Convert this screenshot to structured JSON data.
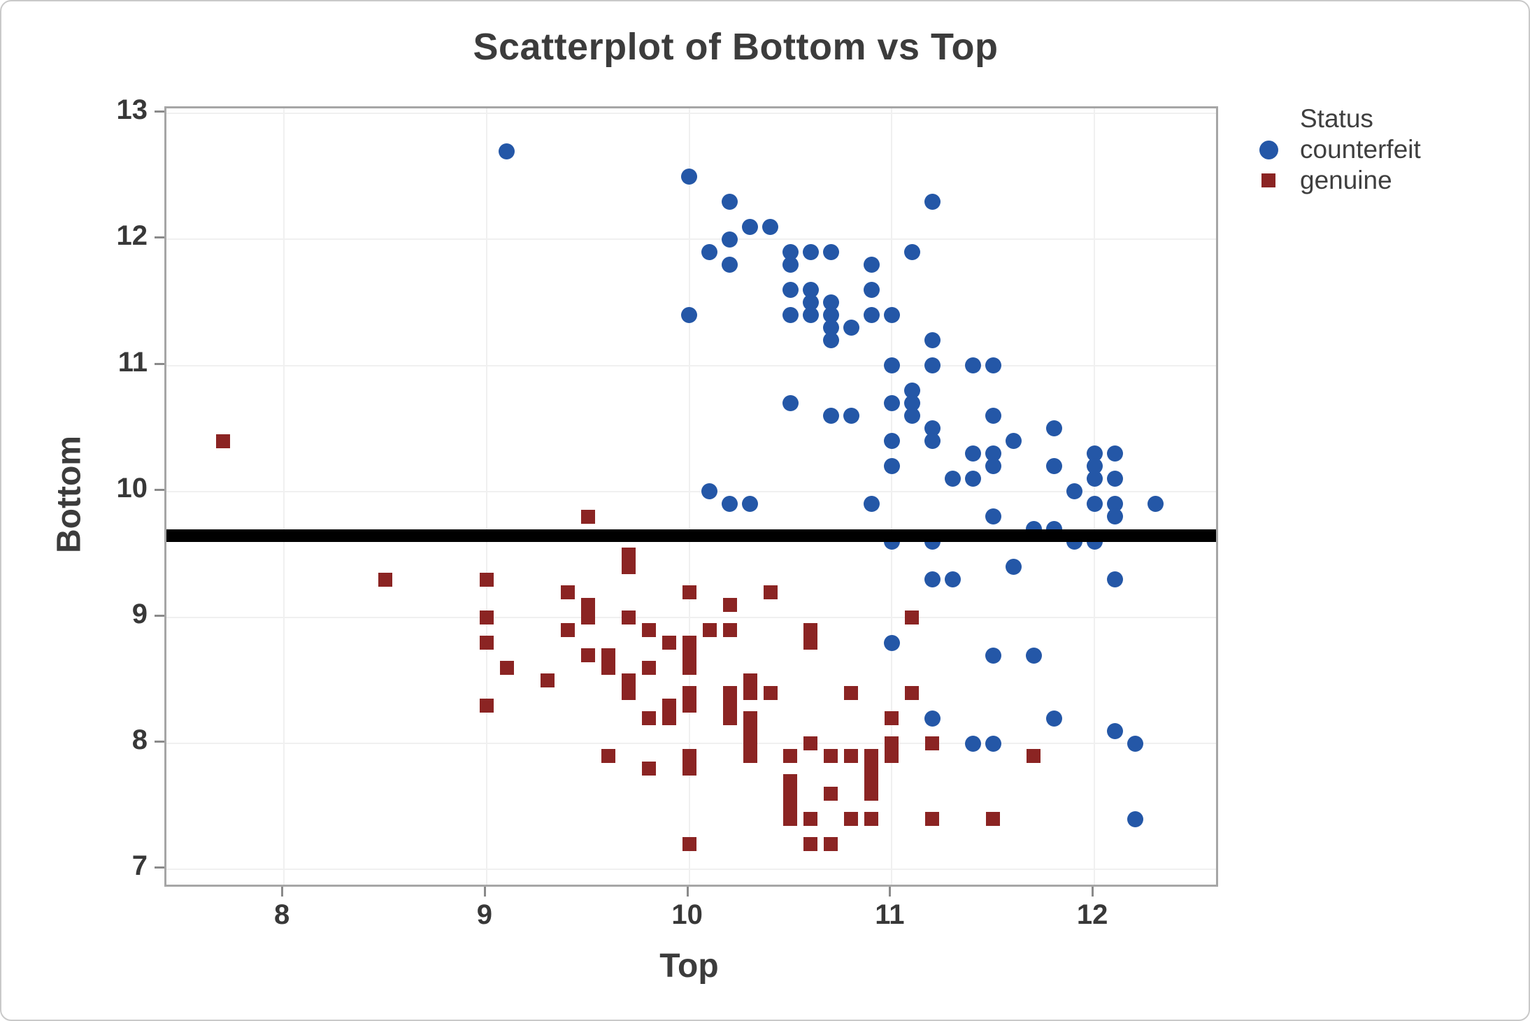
{
  "title": "Scatterplot of Bottom vs Top",
  "legend": {
    "title": "Status",
    "items": [
      {
        "label": "counterfeit",
        "marker": "circle",
        "color": "#2457a7"
      },
      {
        "label": "genuine",
        "marker": "square",
        "color": "#8b2423"
      }
    ]
  },
  "colors": {
    "counterfeit": "#2457a7",
    "genuine": "#8b2423",
    "threshold_line": "#000000",
    "text": "#3c3c3c",
    "plot_border": "#a6a6a6",
    "gridline": "#f0f0f0"
  },
  "chart_data": {
    "type": "scatter",
    "title": "Scatterplot of Bottom vs Top",
    "xlabel": "Top",
    "ylabel": "Bottom",
    "xlim": [
      7.42,
      12.6
    ],
    "ylim": [
      6.88,
      13.04
    ],
    "x_ticks": [
      8,
      9,
      10,
      11,
      12
    ],
    "y_ticks": [
      13,
      12,
      11,
      10,
      9,
      8,
      7
    ],
    "grid": true,
    "legend_position": "right",
    "reference_line": {
      "axis": "y",
      "value": 9.65,
      "color": "#000000"
    },
    "series": [
      {
        "name": "counterfeit",
        "marker": "circle",
        "color": "#2457a7",
        "points": [
          [
            9.1,
            12.7
          ],
          [
            10.0,
            12.5
          ],
          [
            10.2,
            12.3
          ],
          [
            11.2,
            12.3
          ],
          [
            10.3,
            12.1
          ],
          [
            10.4,
            12.1
          ],
          [
            10.2,
            12.0
          ],
          [
            10.1,
            11.9
          ],
          [
            10.5,
            11.9
          ],
          [
            10.6,
            11.9
          ],
          [
            10.7,
            11.9
          ],
          [
            11.1,
            11.9
          ],
          [
            10.2,
            11.8
          ],
          [
            10.5,
            11.8
          ],
          [
            10.9,
            11.8
          ],
          [
            10.5,
            11.6
          ],
          [
            10.6,
            11.6
          ],
          [
            10.9,
            11.6
          ],
          [
            10.6,
            11.5
          ],
          [
            10.7,
            11.5
          ],
          [
            10.0,
            11.4
          ],
          [
            10.5,
            11.4
          ],
          [
            10.6,
            11.4
          ],
          [
            10.7,
            11.4
          ],
          [
            10.9,
            11.4
          ],
          [
            11.0,
            11.4
          ],
          [
            10.7,
            11.3
          ],
          [
            10.8,
            11.3
          ],
          [
            10.7,
            11.2
          ],
          [
            11.2,
            11.2
          ],
          [
            11.0,
            11.0
          ],
          [
            11.2,
            11.0
          ],
          [
            11.4,
            11.0
          ],
          [
            11.5,
            11.0
          ],
          [
            11.1,
            10.8
          ],
          [
            10.5,
            10.7
          ],
          [
            11.0,
            10.7
          ],
          [
            11.1,
            10.7
          ],
          [
            10.7,
            10.6
          ],
          [
            10.8,
            10.6
          ],
          [
            11.1,
            10.6
          ],
          [
            11.5,
            10.6
          ],
          [
            11.2,
            10.5
          ],
          [
            11.8,
            10.5
          ],
          [
            11.0,
            10.4
          ],
          [
            11.2,
            10.4
          ],
          [
            11.6,
            10.4
          ],
          [
            11.4,
            10.3
          ],
          [
            11.5,
            10.3
          ],
          [
            12.0,
            10.3
          ],
          [
            12.1,
            10.3
          ],
          [
            11.0,
            10.2
          ],
          [
            11.5,
            10.2
          ],
          [
            11.8,
            10.2
          ],
          [
            12.0,
            10.2
          ],
          [
            11.3,
            10.1
          ],
          [
            11.4,
            10.1
          ],
          [
            12.0,
            10.1
          ],
          [
            12.1,
            10.1
          ],
          [
            10.1,
            10.0
          ],
          [
            11.9,
            10.0
          ],
          [
            10.2,
            9.9
          ],
          [
            10.3,
            9.9
          ],
          [
            10.9,
            9.9
          ],
          [
            12.0,
            9.9
          ],
          [
            12.1,
            9.9
          ],
          [
            12.3,
            9.9
          ],
          [
            11.5,
            9.8
          ],
          [
            12.1,
            9.8
          ],
          [
            11.7,
            9.7
          ],
          [
            11.8,
            9.7
          ],
          [
            11.0,
            9.6
          ],
          [
            11.2,
            9.6
          ],
          [
            11.9,
            9.6
          ],
          [
            12.0,
            9.6
          ],
          [
            11.6,
            9.4
          ],
          [
            11.2,
            9.3
          ],
          [
            11.3,
            9.3
          ],
          [
            12.1,
            9.3
          ],
          [
            11.0,
            8.8
          ],
          [
            11.5,
            8.7
          ],
          [
            11.7,
            8.7
          ],
          [
            11.2,
            8.2
          ],
          [
            11.8,
            8.2
          ],
          [
            12.1,
            8.1
          ],
          [
            11.4,
            8.0
          ],
          [
            11.5,
            8.0
          ],
          [
            12.2,
            8.0
          ],
          [
            12.2,
            7.4
          ]
        ]
      },
      {
        "name": "genuine",
        "marker": "square",
        "color": "#8b2423",
        "points": [
          [
            7.7,
            10.4
          ],
          [
            9.5,
            9.8
          ],
          [
            8.5,
            9.3
          ],
          [
            9.0,
            9.3
          ],
          [
            9.4,
            9.2
          ],
          [
            9.7,
            9.5
          ],
          [
            9.7,
            9.4
          ],
          [
            10.0,
            9.2
          ],
          [
            10.4,
            9.2
          ],
          [
            9.5,
            9.1
          ],
          [
            9.5,
            9.0
          ],
          [
            10.2,
            9.1
          ],
          [
            11.1,
            9.0
          ],
          [
            9.0,
            9.0
          ],
          [
            9.7,
            9.0
          ],
          [
            9.8,
            8.9
          ],
          [
            9.4,
            8.9
          ],
          [
            10.1,
            8.9
          ],
          [
            10.2,
            8.9
          ],
          [
            10.6,
            8.9
          ],
          [
            10.6,
            8.8
          ],
          [
            9.0,
            8.8
          ],
          [
            9.1,
            8.6
          ],
          [
            9.5,
            8.7
          ],
          [
            9.6,
            8.7
          ],
          [
            9.6,
            8.6
          ],
          [
            9.8,
            8.6
          ],
          [
            9.9,
            8.8
          ],
          [
            10.0,
            8.8
          ],
          [
            10.0,
            8.7
          ],
          [
            10.0,
            8.6
          ],
          [
            9.7,
            8.5
          ],
          [
            9.7,
            8.4
          ],
          [
            9.3,
            8.5
          ],
          [
            9.0,
            8.3
          ],
          [
            9.9,
            8.3
          ],
          [
            9.9,
            8.2
          ],
          [
            9.8,
            8.2
          ],
          [
            10.0,
            8.4
          ],
          [
            10.0,
            8.3
          ],
          [
            10.2,
            8.4
          ],
          [
            10.2,
            8.3
          ],
          [
            10.2,
            8.2
          ],
          [
            10.3,
            8.5
          ],
          [
            10.3,
            8.4
          ],
          [
            10.3,
            8.2
          ],
          [
            10.3,
            8.1
          ],
          [
            10.3,
            8.0
          ],
          [
            10.3,
            7.9
          ],
          [
            10.4,
            8.4
          ],
          [
            10.8,
            8.4
          ],
          [
            11.1,
            8.4
          ],
          [
            11.0,
            8.2
          ],
          [
            11.0,
            8.0
          ],
          [
            11.0,
            7.9
          ],
          [
            11.2,
            8.0
          ],
          [
            10.5,
            7.9
          ],
          [
            10.6,
            8.0
          ],
          [
            10.7,
            7.9
          ],
          [
            10.8,
            7.9
          ],
          [
            10.9,
            7.9
          ],
          [
            10.9,
            7.8
          ],
          [
            10.9,
            7.7
          ],
          [
            10.9,
            7.6
          ],
          [
            10.9,
            7.4
          ],
          [
            9.6,
            7.9
          ],
          [
            9.8,
            7.8
          ],
          [
            10.0,
            7.9
          ],
          [
            10.0,
            7.8
          ],
          [
            11.7,
            7.9
          ],
          [
            10.5,
            7.7
          ],
          [
            10.5,
            7.6
          ],
          [
            10.5,
            7.5
          ],
          [
            10.5,
            7.4
          ],
          [
            10.6,
            7.4
          ],
          [
            10.7,
            7.6
          ],
          [
            10.8,
            7.4
          ],
          [
            11.2,
            7.4
          ],
          [
            11.5,
            7.4
          ],
          [
            10.6,
            7.2
          ],
          [
            10.7,
            7.2
          ],
          [
            10.0,
            7.2
          ]
        ]
      }
    ]
  }
}
